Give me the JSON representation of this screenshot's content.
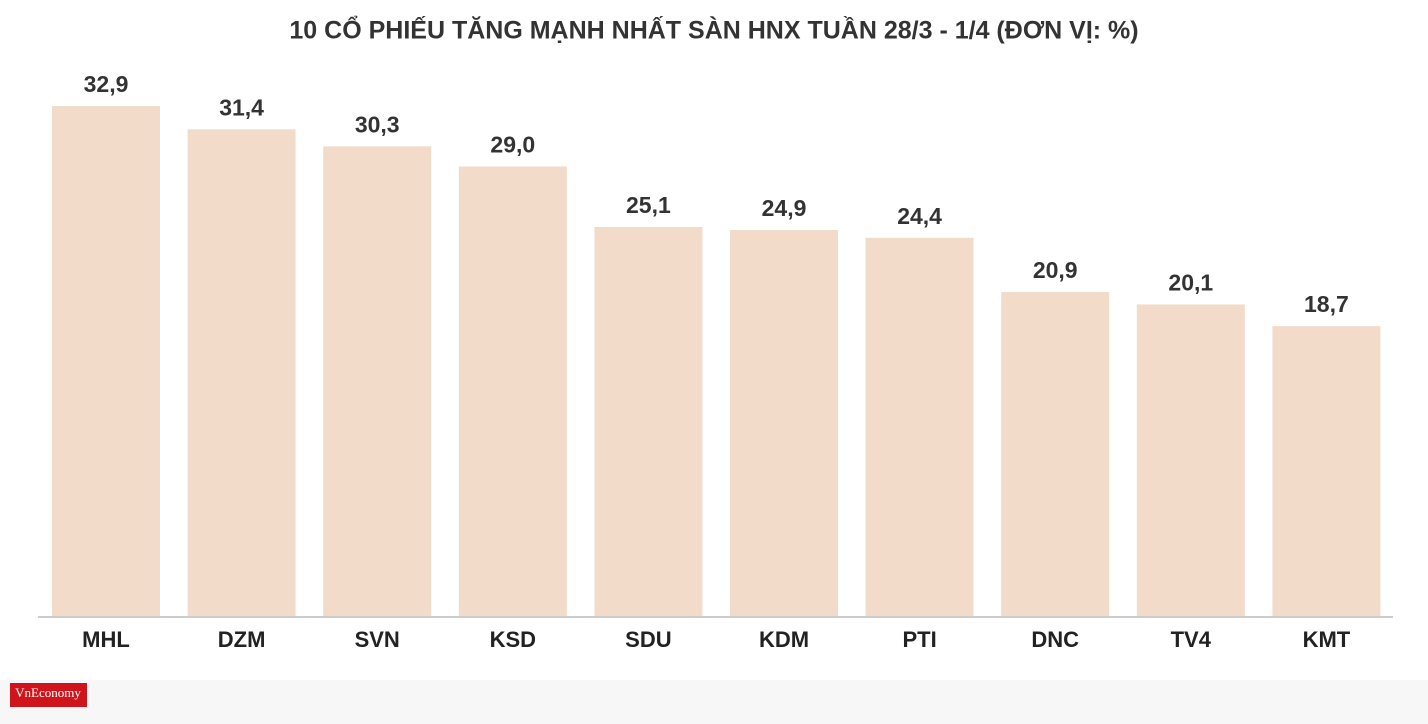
{
  "chart_data": {
    "type": "bar",
    "title": "10 CỔ PHIẾU TĂNG MẠNH NHẤT SÀN HNX TUẦN 28/3 - 1/4 (ĐƠN VỊ: %)",
    "categories": [
      "MHL",
      "DZM",
      "SVN",
      "KSD",
      "SDU",
      "KDM",
      "PTI",
      "DNC",
      "TV4",
      "KMT"
    ],
    "values": [
      32.9,
      31.4,
      30.3,
      29.0,
      25.1,
      24.9,
      24.4,
      20.9,
      20.1,
      18.7
    ],
    "value_labels": [
      "32,9",
      "31,4",
      "30,3",
      "29,0",
      "25,1",
      "24,9",
      "24,4",
      "20,9",
      "20,1",
      "18,7"
    ],
    "color": "#f2dbc8"
  },
  "logo": "VnEconomy"
}
